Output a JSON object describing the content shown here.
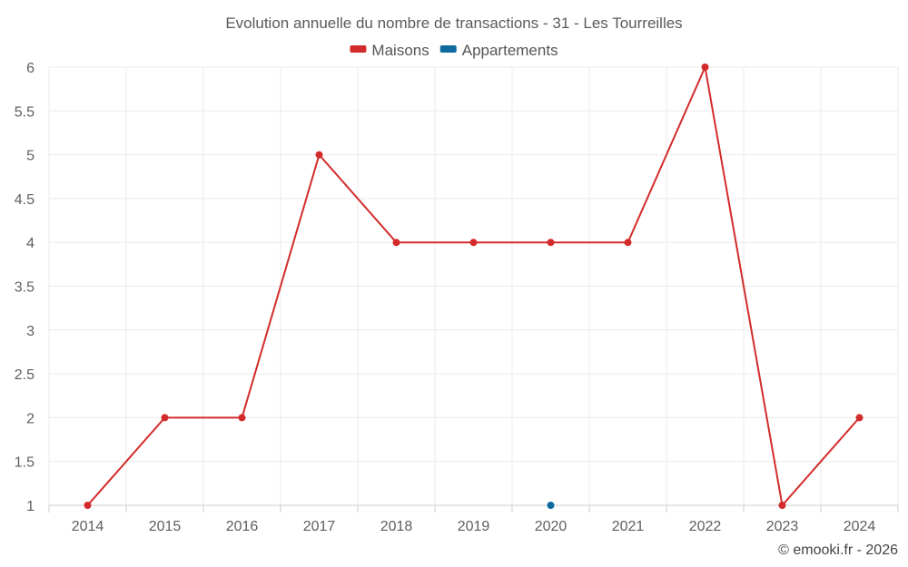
{
  "chart_data": {
    "type": "line",
    "title": "Evolution annuelle du nombre de transactions - 31 - Les Tourreilles",
    "categories": [
      "2014",
      "2015",
      "2016",
      "2017",
      "2018",
      "2019",
      "2020",
      "2021",
      "2022",
      "2023",
      "2024"
    ],
    "series": [
      {
        "name": "Maisons",
        "color": "#d32b2b",
        "values": [
          1,
          2,
          2,
          5,
          4,
          4,
          4,
          4,
          6,
          1,
          2
        ]
      },
      {
        "name": "Appartements",
        "color": "#0f6a9f",
        "values": [
          null,
          null,
          null,
          null,
          null,
          null,
          1,
          null,
          null,
          null,
          null
        ]
      }
    ],
    "ylim": [
      1,
      6
    ],
    "yticks": [
      "1",
      "1.5",
      "2",
      "2.5",
      "3",
      "3.5",
      "4",
      "4.5",
      "5",
      "5.5",
      "6"
    ],
    "xlabel": "",
    "ylabel": "",
    "grid": true,
    "legend_position": "top-center",
    "credit": "© emooki.fr - 2026"
  }
}
